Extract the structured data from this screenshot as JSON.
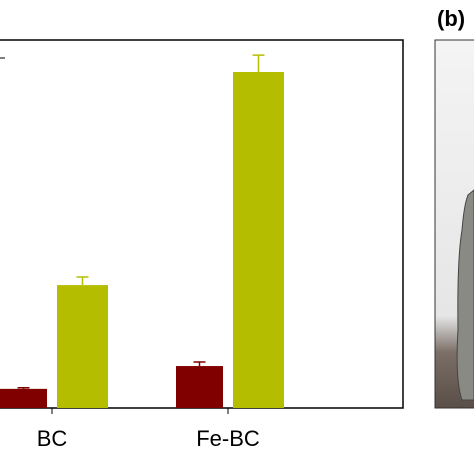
{
  "chart_data": {
    "type": "bar",
    "categories": [
      "BC",
      "Fe-BC"
    ],
    "series": [
      {
        "color": "#800000",
        "values": [
          5.2,
          11.4
        ],
        "errors": [
          0.3,
          1.1
        ]
      },
      {
        "color": "#b5bd00",
        "values": [
          33.4,
          91.3
        ],
        "errors": [
          2.2,
          4.6
        ]
      }
    ],
    "ylim": [
      0,
      100
    ],
    "annotations": [
      "(b)"
    ]
  }
}
